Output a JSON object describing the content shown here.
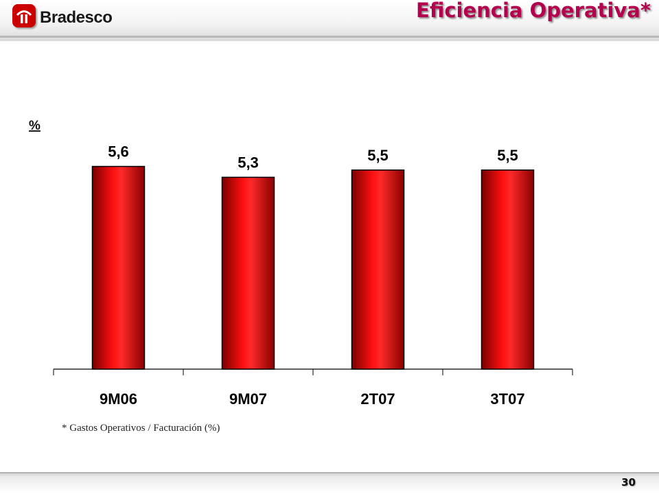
{
  "header": {
    "brand": "Bradesco",
    "title": "Eficiencia Operativa*"
  },
  "chart_data": {
    "type": "bar",
    "unit_label": "%",
    "categories": [
      "9M06",
      "9M07",
      "2T07",
      "3T07"
    ],
    "values": [
      5.6,
      5.3,
      5.5,
      5.5
    ],
    "data_labels": [
      "5,6",
      "5,3",
      "5,5",
      "5,5"
    ],
    "ylim": [
      0,
      5.8
    ],
    "grid": false,
    "bar_color": "#e00000"
  },
  "footnote": "* Gastos Operativos / Facturación (%)",
  "footer": {
    "page_number": "30"
  }
}
